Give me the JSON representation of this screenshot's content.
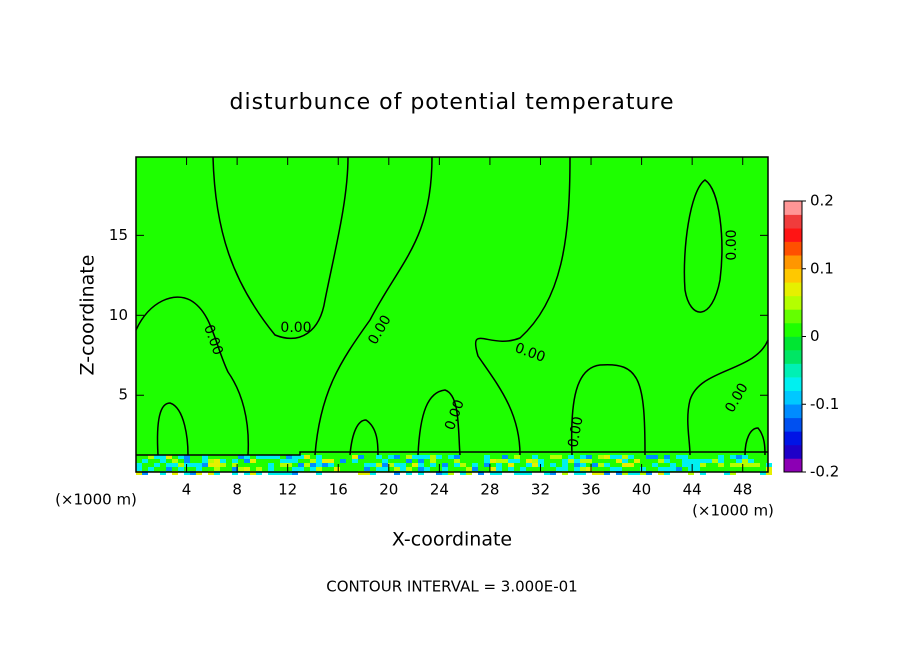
{
  "chart_data": {
    "type": "contour",
    "title": "disturbunce of potential temperature",
    "x_label": "X-coordinate",
    "y_label": "Z-coordinate",
    "x_unit_label": "(×1000 m)",
    "y_unit_label": "(×1000 m)",
    "footer": "CONTOUR INTERVAL = 3.000E-01",
    "xlim": [
      0,
      50
    ],
    "xticks": [
      4,
      8,
      12,
      16,
      20,
      24,
      28,
      32,
      36,
      40,
      44,
      48
    ],
    "ylim": [
      0.2,
      19.9
    ],
    "yticks": [
      5,
      10,
      15
    ],
    "contour_levels": [
      {
        "value": 0,
        "label": "0.00"
      }
    ],
    "clim": [
      -0.2,
      0.2
    ],
    "cticks": [
      -0.2,
      -0.1,
      0,
      0.1,
      0.2
    ],
    "colors": [
      "#8c00b4",
      "#1e00c8",
      "#0014e6",
      "#0050f0",
      "#008cff",
      "#00c8ff",
      "#00f0f0",
      "#00f0b4",
      "#00e664",
      "#00e632",
      "#1eff00",
      "#64ff00",
      "#b4ff00",
      "#e6f000",
      "#ffc800",
      "#ff9600",
      "#ff5000",
      "#ff1414",
      "#f03c3c",
      "#ff9696"
    ]
  }
}
